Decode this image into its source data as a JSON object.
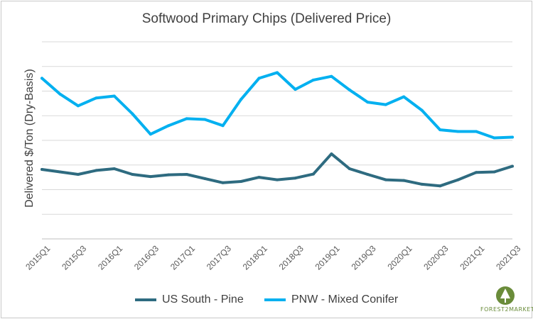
{
  "chart_data": {
    "type": "line",
    "title": "Softwood Primary Chips (Delivered Price)",
    "xlabel": "",
    "ylabel": "Delivered $/Ton (Dry-Basis)",
    "x": [
      "2015Q1",
      "2015Q2",
      "2015Q3",
      "2015Q4",
      "2016Q1",
      "2016Q2",
      "2016Q3",
      "2016Q4",
      "2017Q1",
      "2017Q2",
      "2017Q3",
      "2017Q4",
      "2018Q1",
      "2018Q2",
      "2018Q3",
      "2018Q4",
      "2019Q1",
      "2019Q2",
      "2019Q3",
      "2019Q4",
      "2020Q1",
      "2020Q2",
      "2020Q3",
      "2020Q4",
      "2021Q1",
      "2021Q2",
      "2021Q3"
    ],
    "x_tick_labels": [
      "2015Q1",
      "2015Q3",
      "2016Q1",
      "2016Q3",
      "2017Q1",
      "2017Q3",
      "2018Q1",
      "2018Q3",
      "2019Q1",
      "2019Q3",
      "2020Q1",
      "2020Q3",
      "2021Q1",
      "2021Q3"
    ],
    "y_tick_labels_shown": false,
    "ylim": [
      0,
      8
    ],
    "grid": true,
    "legend": "bottom",
    "series": [
      {
        "name": "US South - Pine",
        "color": "#2e6b80",
        "values": [
          2.82,
          2.72,
          2.62,
          2.78,
          2.85,
          2.62,
          2.53,
          2.6,
          2.62,
          2.45,
          2.28,
          2.33,
          2.5,
          2.4,
          2.47,
          2.63,
          3.45,
          2.85,
          2.62,
          2.4,
          2.37,
          2.22,
          2.15,
          2.4,
          2.7,
          2.72,
          2.95
        ]
      },
      {
        "name": "PNW - Mixed Conifer",
        "color": "#00b0f0",
        "values": [
          6.52,
          5.88,
          5.4,
          5.72,
          5.8,
          5.08,
          4.25,
          4.6,
          4.88,
          4.85,
          4.6,
          5.66,
          6.52,
          6.75,
          6.07,
          6.45,
          6.6,
          6.05,
          5.55,
          5.45,
          5.77,
          5.22,
          4.43,
          4.36,
          4.36,
          4.1,
          4.13
        ]
      }
    ]
  },
  "branding": {
    "logo_text": "FOREST2MARKET",
    "logo_color": "#6a8c3a"
  }
}
